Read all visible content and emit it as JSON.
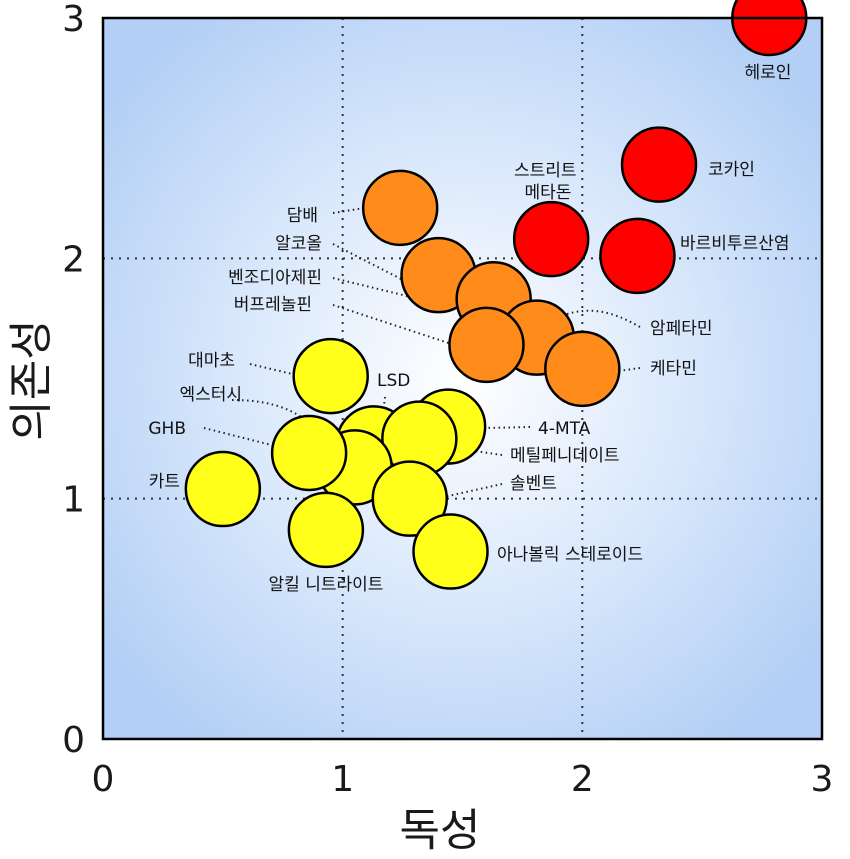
{
  "chart_data": {
    "type": "scatter",
    "xlabel": "독성",
    "ylabel": "의존성",
    "xlim": [
      0,
      3
    ],
    "ylim": [
      0,
      3
    ],
    "x_ticks": [
      "0",
      "1",
      "2",
      "3"
    ],
    "y_ticks": [
      "0",
      "1",
      "2",
      "3"
    ],
    "grid": "dotted at 1 and 2",
    "background": "radial gradient, white center to light blue",
    "colors": {
      "high": "#ff0000",
      "medium": "#ff8c1a",
      "low": "#ffff1a",
      "outline": "#000000"
    },
    "points": [
      {
        "name": "헤로인",
        "x": 2.78,
        "y": 3.0,
        "group": "high"
      },
      {
        "name": "코카인",
        "x": 2.32,
        "y": 2.39,
        "group": "high"
      },
      {
        "name": "바르비투르산염",
        "x": 2.23,
        "y": 2.01,
        "group": "high"
      },
      {
        "name": "스트리트 메타돈",
        "x": 1.87,
        "y": 2.08,
        "group": "high"
      },
      {
        "name": "담배",
        "x": 1.24,
        "y": 2.21,
        "group": "medium"
      },
      {
        "name": "알코올",
        "x": 1.4,
        "y": 1.93,
        "group": "medium"
      },
      {
        "name": "벤조디아제핀",
        "x": 1.63,
        "y": 1.83,
        "group": "medium"
      },
      {
        "name": "암페타민",
        "x": 1.81,
        "y": 1.67,
        "group": "medium"
      },
      {
        "name": "케타민",
        "x": 2.0,
        "y": 1.54,
        "group": "medium"
      },
      {
        "name": "버프레놀핀",
        "x": 1.6,
        "y": 1.64,
        "group": "medium"
      },
      {
        "name": "대마초",
        "x": 0.95,
        "y": 1.51,
        "group": "low"
      },
      {
        "name": "LSD",
        "x": 1.13,
        "y": 1.23,
        "group": "low"
      },
      {
        "name": "4-MTA",
        "x": 1.44,
        "y": 1.3,
        "group": "low"
      },
      {
        "name": "메틸페니데이트",
        "x": 1.32,
        "y": 1.25,
        "group": "low"
      },
      {
        "name": "엑스터시",
        "x": 1.05,
        "y": 1.13,
        "group": "low"
      },
      {
        "name": "GHB",
        "x": 0.86,
        "y": 1.19,
        "group": "low"
      },
      {
        "name": "솔벤트",
        "x": 1.28,
        "y": 1.0,
        "group": "low"
      },
      {
        "name": "카트",
        "x": 0.5,
        "y": 1.04,
        "group": "low"
      },
      {
        "name": "알킬 니트라이트",
        "x": 0.93,
        "y": 0.87,
        "group": "low"
      },
      {
        "name": "아나볼릭 스테로이드",
        "x": 1.45,
        "y": 0.78,
        "group": "low"
      }
    ]
  }
}
